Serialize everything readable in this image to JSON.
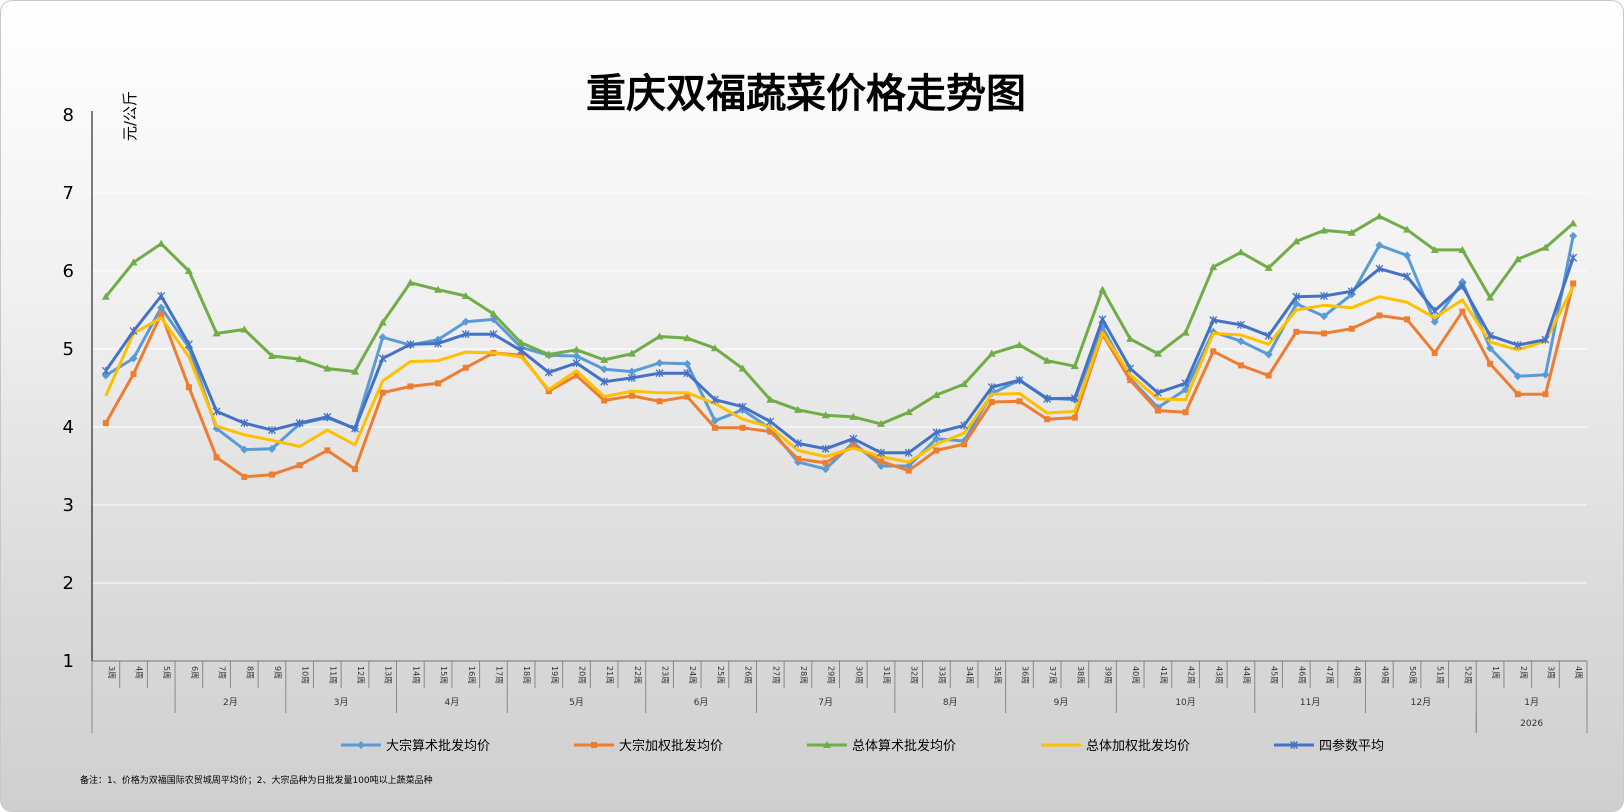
{
  "chart_data": {
    "type": "line",
    "title": "重庆双福蔬菜价格走势图",
    "ylabel": "元/公斤",
    "ylim": [
      1,
      8
    ],
    "yticks": [
      1,
      2,
      3,
      4,
      5,
      6,
      7,
      8
    ],
    "grid": true,
    "legend_position": "bottom",
    "note": "备注：1、价格为双福国际农贸城周平均价；2、大宗品种为日批发量100吨以上蔬菜品种",
    "categories": [
      "3周",
      "4周",
      "5周",
      "6周",
      "7周",
      "8周",
      "9周",
      "10周",
      "11周",
      "12周",
      "13周",
      "14周",
      "15周",
      "16周",
      "17周",
      "18周",
      "19周",
      "20周",
      "21周",
      "22周",
      "23周",
      "24周",
      "25周",
      "26周",
      "27周",
      "28周",
      "29周",
      "30周",
      "31周",
      "32周",
      "33周",
      "34周",
      "35周",
      "36周",
      "37周",
      "38周",
      "39周",
      "40周",
      "41周",
      "42周",
      "43周",
      "44周",
      "45周",
      "46周",
      "47周",
      "48周",
      "49周",
      "50周",
      "51周",
      "52周",
      "1周",
      "2周",
      "3周",
      "4周"
    ],
    "month_groups": [
      {
        "label": "",
        "count": 3
      },
      {
        "label": "2月",
        "count": 4
      },
      {
        "label": "3月",
        "count": 4
      },
      {
        "label": "4月",
        "count": 4
      },
      {
        "label": "5月",
        "count": 5
      },
      {
        "label": "6月",
        "count": 4
      },
      {
        "label": "7月",
        "count": 5
      },
      {
        "label": "8月",
        "count": 4
      },
      {
        "label": "9月",
        "count": 4
      },
      {
        "label": "10月",
        "count": 5
      },
      {
        "label": "11月",
        "count": 4
      },
      {
        "label": "12月",
        "count": 4
      },
      {
        "label": "1月",
        "count": 4
      }
    ],
    "year_groups": [
      {
        "label": "",
        "count": 50
      },
      {
        "label": "2026",
        "count": 4
      }
    ],
    "series": [
      {
        "name": "大宗算术批发均价",
        "color": "#5b9bd5",
        "marker": "diamond",
        "values": [
          4.66,
          4.88,
          5.53,
          5.02,
          3.98,
          3.71,
          3.72,
          4.04,
          4.12,
          3.98,
          5.15,
          5.05,
          5.12,
          5.35,
          5.38,
          5.02,
          4.92,
          4.91,
          4.74,
          4.71,
          4.82,
          4.81,
          4.08,
          4.22,
          3.98,
          3.55,
          3.46,
          3.8,
          3.5,
          3.5,
          3.85,
          3.82,
          4.43,
          4.6,
          4.37,
          4.35,
          5.28,
          4.62,
          4.25,
          4.48,
          5.22,
          5.1,
          4.93,
          5.58,
          5.42,
          5.7,
          6.33,
          6.2,
          5.35,
          5.86,
          5.01,
          4.65,
          4.67,
          6.45
        ]
      },
      {
        "name": "大宗加权批发均价",
        "color": "#ed7d31",
        "marker": "square",
        "values": [
          4.05,
          4.68,
          5.45,
          4.51,
          3.61,
          3.36,
          3.39,
          3.51,
          3.7,
          3.46,
          4.44,
          4.52,
          4.56,
          4.76,
          4.95,
          4.92,
          4.46,
          4.66,
          4.34,
          4.4,
          4.33,
          4.39,
          3.99,
          3.99,
          3.94,
          3.59,
          3.54,
          3.76,
          3.56,
          3.44,
          3.7,
          3.78,
          4.32,
          4.33,
          4.1,
          4.12,
          5.19,
          4.6,
          4.21,
          4.19,
          4.97,
          4.79,
          4.66,
          5.22,
          5.2,
          5.26,
          5.43,
          5.38,
          4.95,
          5.48,
          4.81,
          4.42,
          4.42,
          5.84
        ]
      },
      {
        "name": "总体算术批发均价",
        "color": "#70ad47",
        "marker": "triangle",
        "values": [
          5.67,
          6.11,
          6.35,
          6.0,
          5.2,
          5.25,
          4.91,
          4.87,
          4.75,
          4.71,
          5.34,
          5.85,
          5.76,
          5.68,
          5.45,
          5.08,
          4.93,
          4.99,
          4.86,
          4.94,
          5.16,
          5.14,
          5.01,
          4.75,
          4.35,
          4.22,
          4.15,
          4.13,
          4.04,
          4.19,
          4.41,
          4.55,
          4.94,
          5.05,
          4.85,
          4.78,
          5.76,
          5.13,
          4.94,
          5.21,
          6.05,
          6.24,
          6.04,
          6.38,
          6.52,
          6.49,
          6.7,
          6.53,
          6.27,
          6.27,
          5.66,
          6.15,
          6.3,
          6.61
        ]
      },
      {
        "name": "总体加权批发均价",
        "color": "#ffc000",
        "marker": "none",
        "values": [
          4.4,
          5.2,
          5.4,
          4.9,
          4.01,
          3.9,
          3.83,
          3.75,
          3.96,
          3.77,
          4.59,
          4.84,
          4.85,
          4.96,
          4.95,
          4.9,
          4.48,
          4.72,
          4.39,
          4.46,
          4.44,
          4.44,
          4.3,
          4.1,
          4.0,
          3.7,
          3.62,
          3.73,
          3.62,
          3.55,
          3.78,
          3.92,
          4.42,
          4.43,
          4.18,
          4.2,
          5.21,
          4.67,
          4.36,
          4.35,
          5.2,
          5.18,
          5.06,
          5.5,
          5.56,
          5.53,
          5.67,
          5.6,
          5.4,
          5.63,
          5.09,
          4.99,
          5.1,
          5.8
        ]
      },
      {
        "name": "四参数平均",
        "color": "#4472c4",
        "marker": "star",
        "values": [
          4.72,
          5.23,
          5.68,
          5.06,
          4.2,
          4.05,
          3.96,
          4.05,
          4.13,
          3.98,
          4.88,
          5.06,
          5.07,
          5.19,
          5.19,
          4.98,
          4.7,
          4.82,
          4.58,
          4.63,
          4.69,
          4.69,
          4.35,
          4.26,
          4.07,
          3.79,
          3.72,
          3.85,
          3.67,
          3.67,
          3.93,
          4.02,
          4.51,
          4.6,
          4.36,
          4.37,
          5.38,
          4.75,
          4.44,
          4.56,
          5.37,
          5.31,
          5.17,
          5.67,
          5.68,
          5.74,
          6.03,
          5.93,
          5.49,
          5.81,
          5.17,
          5.05,
          5.12,
          6.17
        ]
      }
    ]
  }
}
